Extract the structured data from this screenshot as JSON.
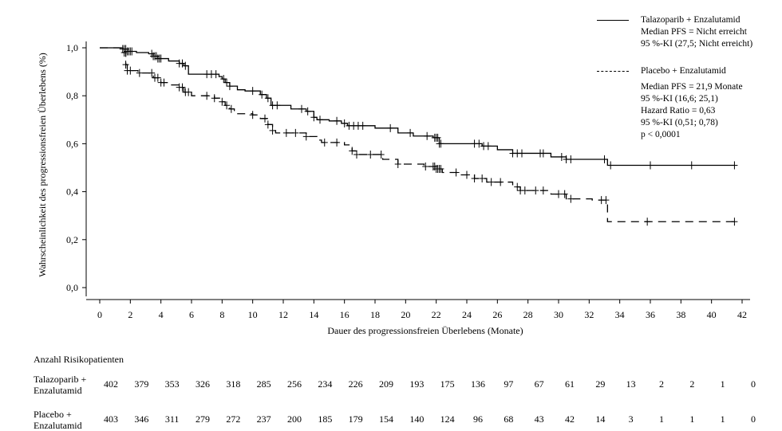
{
  "chart_data": {
    "type": "line",
    "xlabel": "Dauer des progressionsfreien Überlebens (Monate)",
    "ylabel": "Wahrscheinlichkeit des progressionsfreien Überlebens (%)",
    "xlim": [
      0,
      42
    ],
    "ylim": [
      0,
      1.0
    ],
    "x_ticks": [
      0,
      2,
      4,
      6,
      8,
      10,
      12,
      14,
      16,
      18,
      20,
      22,
      24,
      26,
      28,
      30,
      32,
      34,
      36,
      38,
      40,
      42
    ],
    "y_ticks": [
      0.0,
      0.2,
      0.4,
      0.6,
      0.8,
      1.0
    ],
    "y_tick_labels": [
      "0,0",
      "0,2",
      "0,4",
      "0,6",
      "0,8",
      "1,0"
    ],
    "grid": false,
    "series": [
      {
        "name": "Talazoparib + Enzalutamid",
        "style": "solid",
        "steps": [
          [
            0,
            1.0
          ],
          [
            1.5,
            0.995
          ],
          [
            1.8,
            0.985
          ],
          [
            2.4,
            0.98
          ],
          [
            3.2,
            0.975
          ],
          [
            3.5,
            0.965
          ],
          [
            3.8,
            0.955
          ],
          [
            4.5,
            0.945
          ],
          [
            5.2,
            0.935
          ],
          [
            5.5,
            0.925
          ],
          [
            5.8,
            0.89
          ],
          [
            7.0,
            0.89
          ],
          [
            7.8,
            0.88
          ],
          [
            8.0,
            0.87
          ],
          [
            8.2,
            0.855
          ],
          [
            8.5,
            0.84
          ],
          [
            9.0,
            0.825
          ],
          [
            9.5,
            0.82
          ],
          [
            10.5,
            0.805
          ],
          [
            10.9,
            0.79
          ],
          [
            11.2,
            0.76
          ],
          [
            12.5,
            0.745
          ],
          [
            13.5,
            0.735
          ],
          [
            14.0,
            0.71
          ],
          [
            14.2,
            0.7
          ],
          [
            15.0,
            0.695
          ],
          [
            15.8,
            0.685
          ],
          [
            16.2,
            0.675
          ],
          [
            18.0,
            0.665
          ],
          [
            19.5,
            0.645
          ],
          [
            20.5,
            0.632
          ],
          [
            21.8,
            0.625
          ],
          [
            22.2,
            0.6
          ],
          [
            25.0,
            0.59
          ],
          [
            26.0,
            0.575
          ],
          [
            27.0,
            0.56
          ],
          [
            29.5,
            0.545
          ],
          [
            30.5,
            0.535
          ],
          [
            33.2,
            0.51
          ],
          [
            41.5,
            0.51
          ]
        ],
        "censor_x": [
          1.5,
          1.6,
          1.7,
          1.8,
          1.9,
          2.0,
          2.1,
          3.4,
          3.5,
          3.6,
          3.7,
          3.8,
          3.9,
          4.0,
          5.2,
          5.4,
          5.6,
          7.0,
          7.3,
          7.6,
          8.1,
          8.3,
          8.5,
          10.0,
          10.6,
          11.0,
          11.3,
          11.6,
          13.2,
          13.6,
          14.0,
          14.4,
          15.5,
          16.0,
          16.3,
          16.6,
          16.9,
          17.2,
          19.0,
          20.3,
          21.4,
          21.9,
          22.0,
          22.1,
          22.2,
          22.3,
          24.5,
          24.8,
          25.1,
          25.4,
          27.0,
          27.3,
          27.6,
          28.8,
          29.0,
          30.2,
          30.5,
          30.8,
          33.0,
          33.4,
          36.0,
          38.7,
          41.5
        ]
      },
      {
        "name": "Placebo + Enzalutamid",
        "style": "dashed",
        "steps": [
          [
            0,
            1.0
          ],
          [
            1.5,
            0.98
          ],
          [
            1.7,
            0.93
          ],
          [
            1.8,
            0.905
          ],
          [
            2.5,
            0.895
          ],
          [
            3.5,
            0.875
          ],
          [
            4.0,
            0.855
          ],
          [
            4.5,
            0.845
          ],
          [
            5.2,
            0.835
          ],
          [
            5.5,
            0.815
          ],
          [
            6.0,
            0.8
          ],
          [
            7.5,
            0.79
          ],
          [
            8.0,
            0.775
          ],
          [
            8.2,
            0.76
          ],
          [
            8.5,
            0.745
          ],
          [
            8.8,
            0.725
          ],
          [
            10.0,
            0.72
          ],
          [
            10.5,
            0.705
          ],
          [
            11.0,
            0.68
          ],
          [
            11.3,
            0.655
          ],
          [
            11.5,
            0.645
          ],
          [
            13.5,
            0.63
          ],
          [
            14.2,
            0.615
          ],
          [
            14.5,
            0.605
          ],
          [
            16.0,
            0.595
          ],
          [
            16.5,
            0.57
          ],
          [
            16.8,
            0.555
          ],
          [
            18.5,
            0.535
          ],
          [
            19.5,
            0.515
          ],
          [
            21.2,
            0.505
          ],
          [
            22.0,
            0.495
          ],
          [
            22.4,
            0.48
          ],
          [
            23.5,
            0.47
          ],
          [
            24.5,
            0.455
          ],
          [
            25.3,
            0.44
          ],
          [
            27.0,
            0.42
          ],
          [
            27.5,
            0.405
          ],
          [
            29.5,
            0.39
          ],
          [
            30.5,
            0.37
          ],
          [
            32.2,
            0.365
          ],
          [
            33.2,
            0.275
          ],
          [
            41.5,
            0.275
          ]
        ],
        "censor_x": [
          1.6,
          1.7,
          1.8,
          2.0,
          2.6,
          3.4,
          3.6,
          3.8,
          4.0,
          4.2,
          5.2,
          5.4,
          5.6,
          5.8,
          7.0,
          7.5,
          8.0,
          8.3,
          8.6,
          10.0,
          10.8,
          11.0,
          11.3,
          12.2,
          12.8,
          13.5,
          14.7,
          15.5,
          16.5,
          16.8,
          17.7,
          18.4,
          19.5,
          21.3,
          21.8,
          21.9,
          22.0,
          22.1,
          22.2,
          22.3,
          23.3,
          24.0,
          24.5,
          25.0,
          25.6,
          26.2,
          27.3,
          27.5,
          27.8,
          28.5,
          29.0,
          30.0,
          30.4,
          30.8,
          32.8,
          33.1,
          35.8,
          41.5
        ]
      }
    ],
    "legend": [
      {
        "name": "Talazoparib + Enzalutamid",
        "style": "solid",
        "lines": [
          "Median PFS = Nicht erreicht",
          "95 %-KI (27,5; Nicht erreicht)"
        ]
      },
      {
        "name": "Placebo + Enzalutamid",
        "style": "dashed",
        "lines": [
          "Median PFS = 21,9 Monate",
          "95 %-KI (16,6; 25,1)",
          "Hazard Ratio = 0,63",
          "95 %-KI (0,51; 0,78)",
          "p < 0,0001"
        ]
      }
    ],
    "legend_position": "top-right"
  },
  "risk_table": {
    "title": "Anzahl Risikopatienten",
    "rows": [
      {
        "label": "Talazoparib + Enzalutamid",
        "values": [
          "402",
          "379",
          "353",
          "326",
          "318",
          "285",
          "256",
          "234",
          "226",
          "209",
          "193",
          "175",
          "136",
          "97",
          "67",
          "61",
          "29",
          "13",
          "2",
          "2",
          "1",
          "0"
        ]
      },
      {
        "label": "Placebo + Enzalutamid",
        "values": [
          "403",
          "346",
          "311",
          "279",
          "272",
          "237",
          "200",
          "185",
          "179",
          "154",
          "140",
          "124",
          "96",
          "68",
          "43",
          "42",
          "14",
          "3",
          "1",
          "1",
          "1",
          "0"
        ]
      }
    ]
  }
}
